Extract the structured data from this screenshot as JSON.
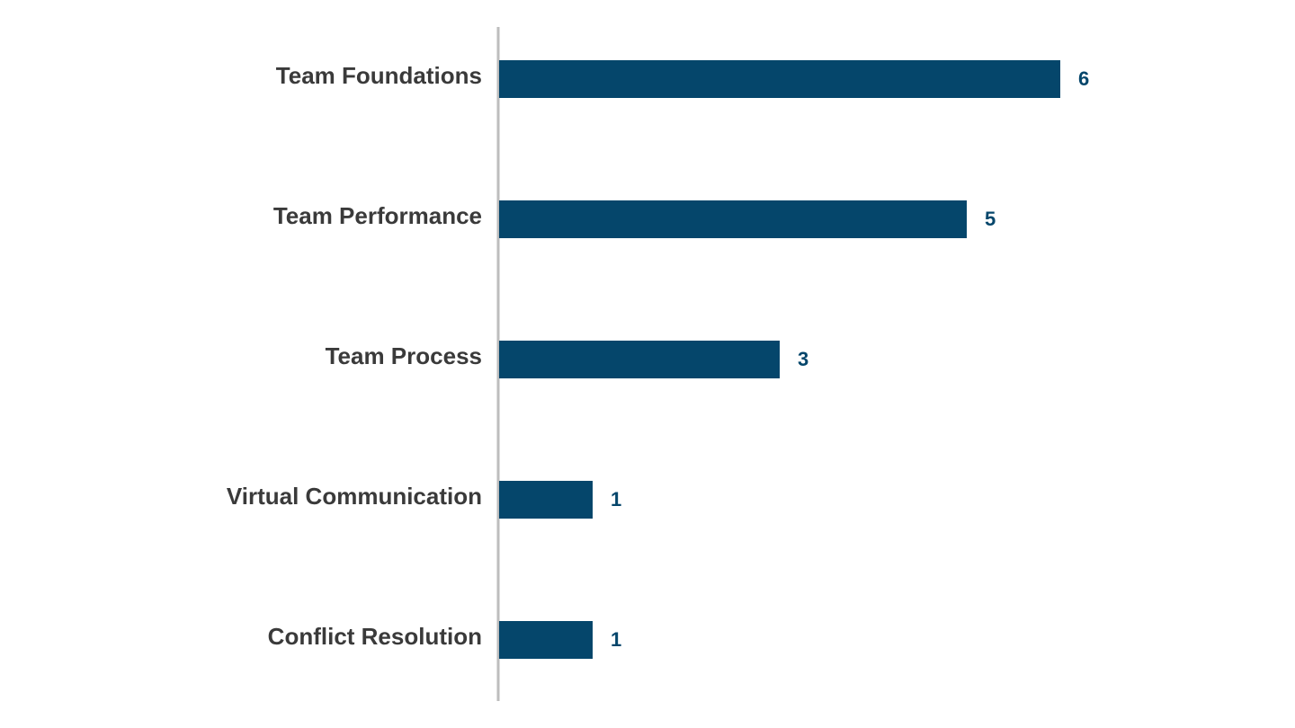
{
  "chart_data": {
    "type": "bar",
    "orientation": "horizontal",
    "categories": [
      "Team Foundations",
      "Team Performance",
      "Team Process",
      "Virtual Communication",
      "Conflict Resolution"
    ],
    "values": [
      6,
      5,
      3,
      1,
      1
    ],
    "color": "#05466b"
  }
}
